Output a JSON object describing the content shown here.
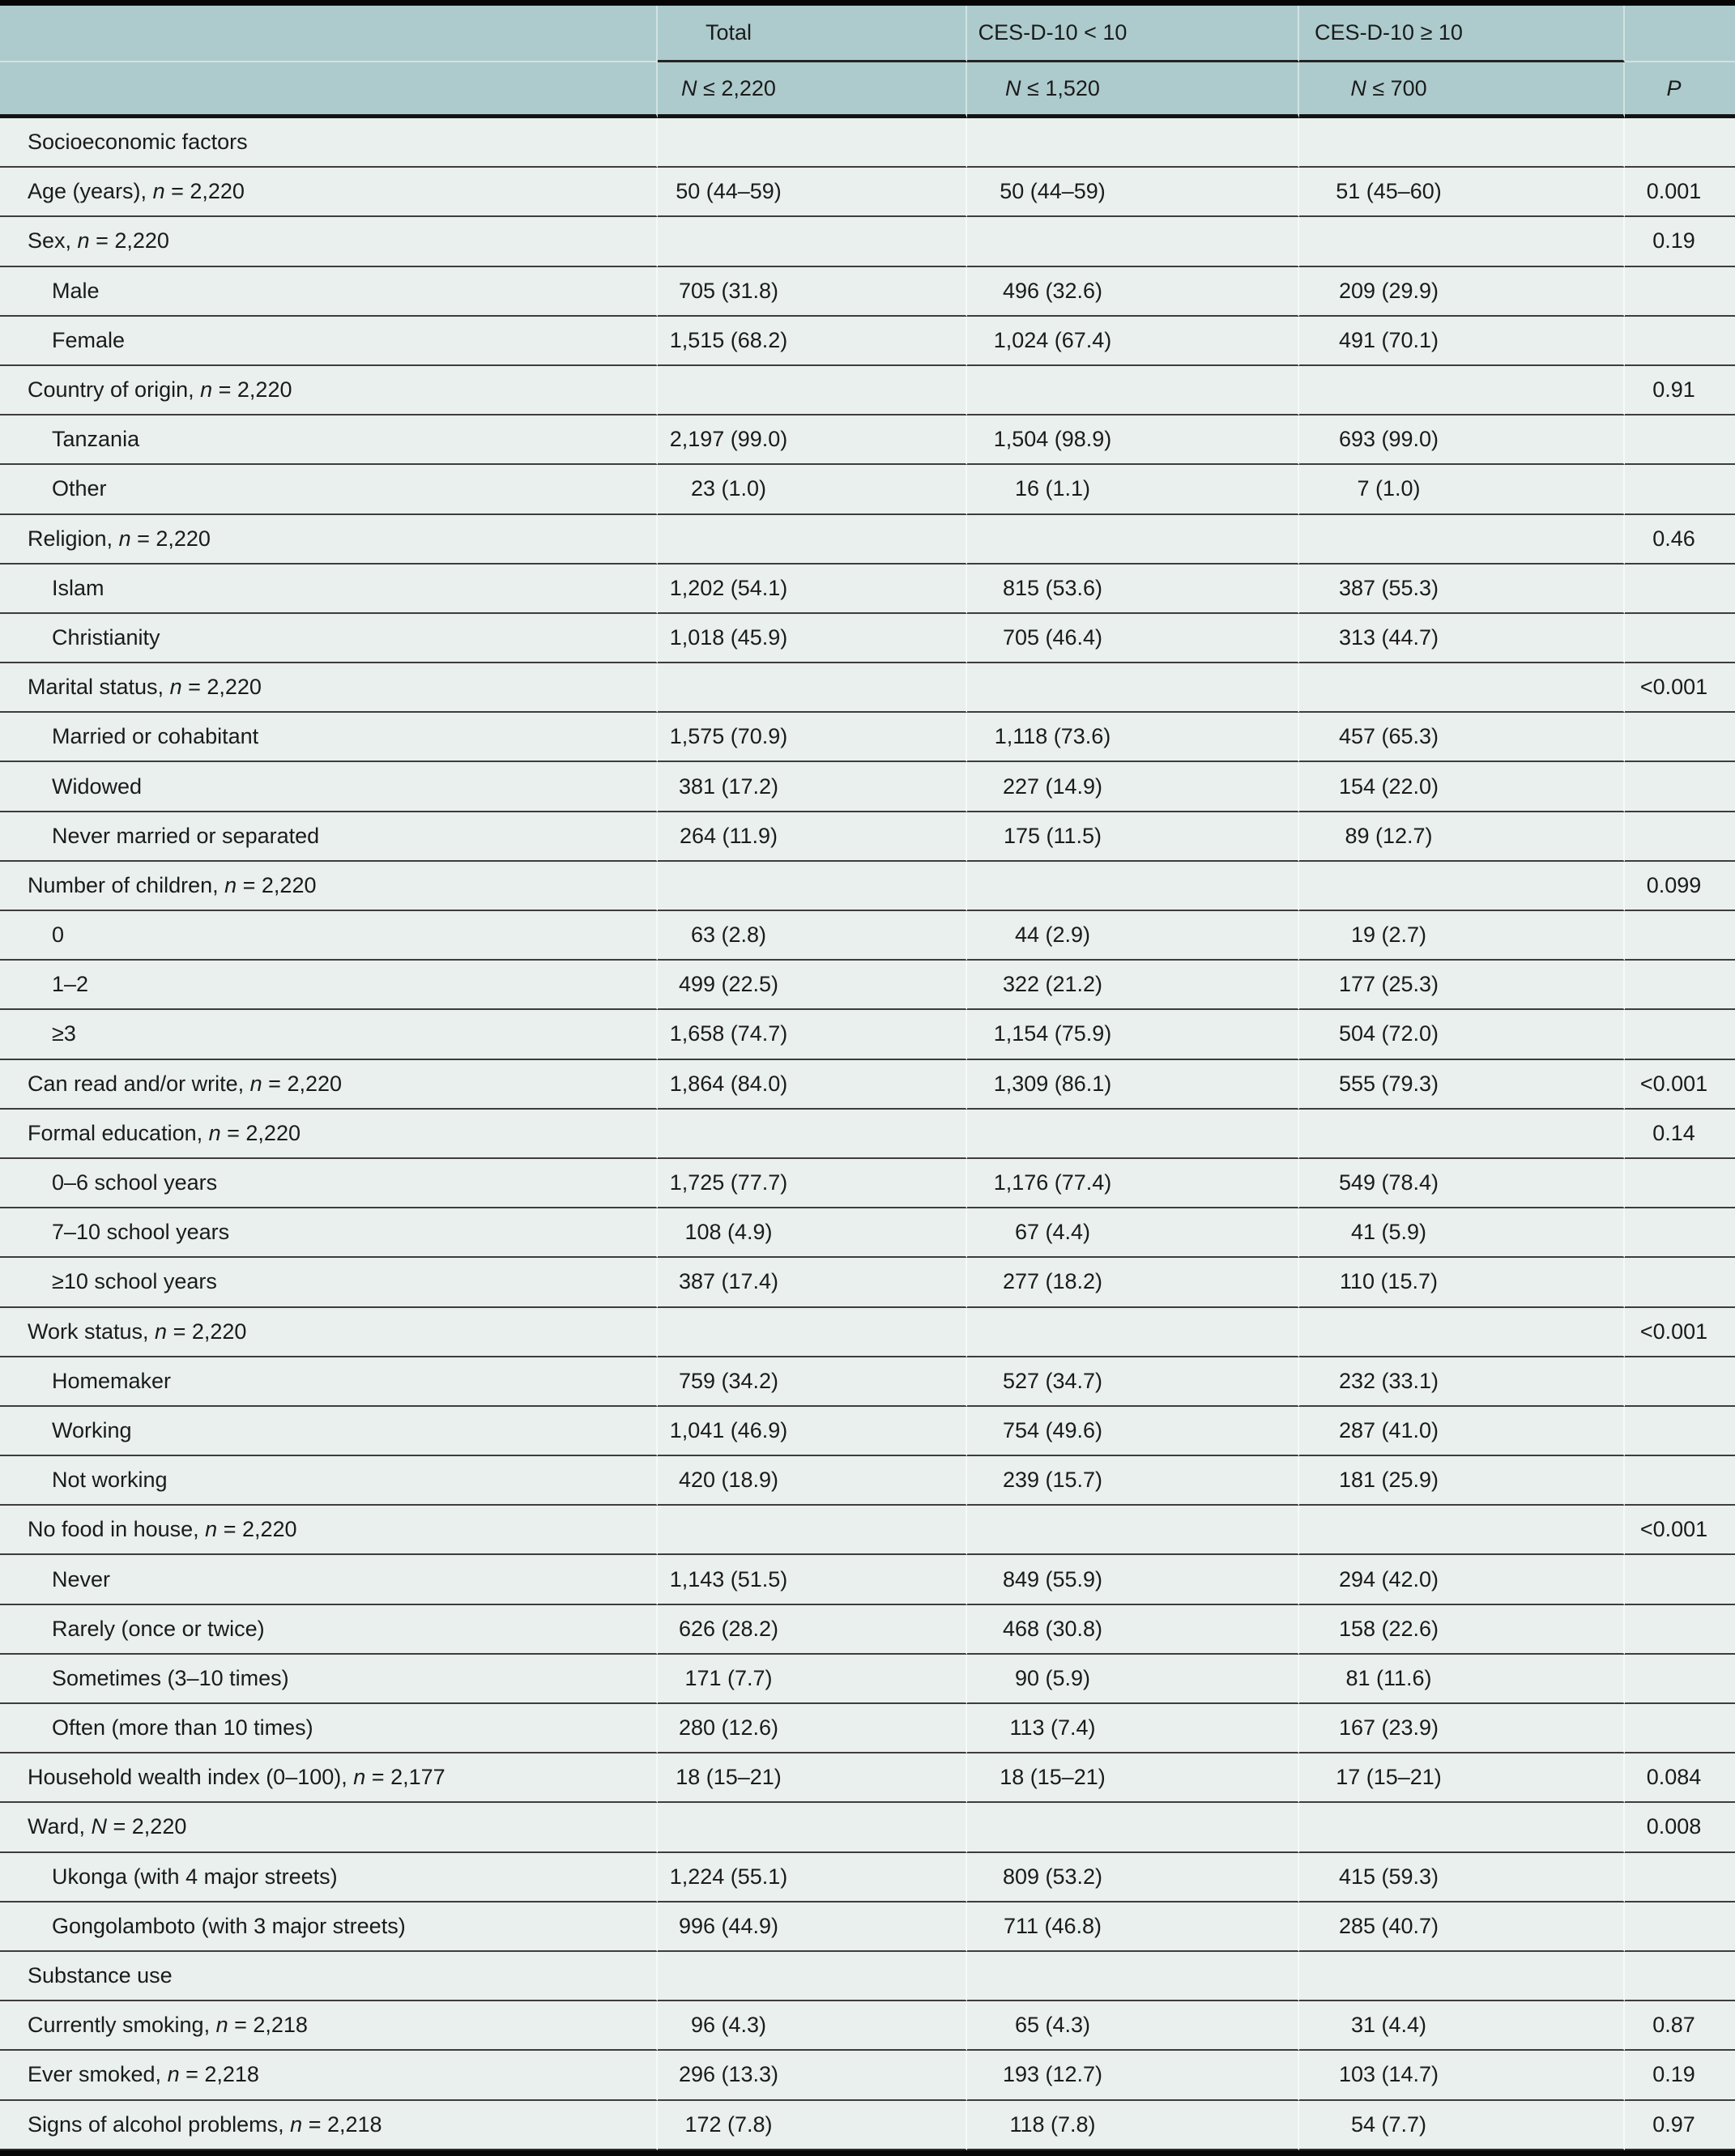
{
  "colors": {
    "header_bg": "#adcbcd",
    "body_bg": "#e9f0ee",
    "rule_dark": "#3d3d3d",
    "rule_heavy": "#141414",
    "text": "#1b1b1b"
  },
  "table": {
    "header": {
      "label_col": "",
      "col_groups": [
        "Total",
        "CES-D-10 < 10",
        "CES-D-10 ≥ 10"
      ],
      "subheaders": [
        "N ≤ 2,220",
        "N ≤ 1,520",
        "N ≤ 700"
      ],
      "p_label": "P"
    },
    "rows": [
      {
        "kind": "section",
        "label": "Socioeconomic factors",
        "total": "",
        "lt10": "",
        "ge10": "",
        "p": ""
      },
      {
        "kind": "item",
        "label": "Age (years), n = 2,220",
        "total": "50 (44–59)",
        "lt10": "50 (44–59)",
        "ge10": "51 (45–60)",
        "p": "0.001"
      },
      {
        "kind": "item",
        "label": "Sex, n = 2,220",
        "total": "",
        "lt10": "",
        "ge10": "",
        "p": "0.19"
      },
      {
        "kind": "sub",
        "label": "Male",
        "total": "705 (31.8)",
        "lt10": "496 (32.6)",
        "ge10": "209 (29.9)",
        "p": ""
      },
      {
        "kind": "sub",
        "label": "Female",
        "total": "1,515 (68.2)",
        "lt10": "1,024 (67.4)",
        "ge10": "491 (70.1)",
        "p": ""
      },
      {
        "kind": "item",
        "label": "Country of origin, n = 2,220",
        "total": "",
        "lt10": "",
        "ge10": "",
        "p": "0.91"
      },
      {
        "kind": "sub",
        "label": "Tanzania",
        "total": "2,197 (99.0)",
        "lt10": "1,504 (98.9)",
        "ge10": "693 (99.0)",
        "p": ""
      },
      {
        "kind": "sub",
        "label": "Other",
        "total": "23 (1.0)",
        "lt10": "16 (1.1)",
        "ge10": "7 (1.0)",
        "p": ""
      },
      {
        "kind": "item",
        "label": "Religion, n = 2,220",
        "total": "",
        "lt10": "",
        "ge10": "",
        "p": "0.46"
      },
      {
        "kind": "sub",
        "label": "Islam",
        "total": "1,202 (54.1)",
        "lt10": "815 (53.6)",
        "ge10": "387 (55.3)",
        "p": ""
      },
      {
        "kind": "sub",
        "label": "Christianity",
        "total": "1,018 (45.9)",
        "lt10": "705 (46.4)",
        "ge10": "313 (44.7)",
        "p": ""
      },
      {
        "kind": "item",
        "label": "Marital status, n = 2,220",
        "total": "",
        "lt10": "",
        "ge10": "",
        "p": "<0.001"
      },
      {
        "kind": "sub",
        "label": "Married or cohabitant",
        "total": "1,575 (70.9)",
        "lt10": "1,118 (73.6)",
        "ge10": "457 (65.3)",
        "p": ""
      },
      {
        "kind": "sub",
        "label": "Widowed",
        "total": "381 (17.2)",
        "lt10": "227 (14.9)",
        "ge10": "154 (22.0)",
        "p": ""
      },
      {
        "kind": "sub",
        "label": "Never married or separated",
        "total": "264 (11.9)",
        "lt10": "175 (11.5)",
        "ge10": "89 (12.7)",
        "p": ""
      },
      {
        "kind": "item",
        "label": "Number of children, n = 2,220",
        "total": "",
        "lt10": "",
        "ge10": "",
        "p": "0.099"
      },
      {
        "kind": "sub",
        "label": "0",
        "total": "63 (2.8)",
        "lt10": "44 (2.9)",
        "ge10": "19 (2.7)",
        "p": ""
      },
      {
        "kind": "sub",
        "label": "1–2",
        "total": "499 (22.5)",
        "lt10": "322 (21.2)",
        "ge10": "177 (25.3)",
        "p": ""
      },
      {
        "kind": "sub",
        "label": "≥3",
        "total": "1,658 (74.7)",
        "lt10": "1,154 (75.9)",
        "ge10": "504 (72.0)",
        "p": ""
      },
      {
        "kind": "item",
        "label": "Can read and/or write, n = 2,220",
        "total": "1,864 (84.0)",
        "lt10": "1,309 (86.1)",
        "ge10": "555 (79.3)",
        "p": "<0.001"
      },
      {
        "kind": "item",
        "label": "Formal education, n = 2,220",
        "total": "",
        "lt10": "",
        "ge10": "",
        "p": "0.14"
      },
      {
        "kind": "sub",
        "label": "0–6 school years",
        "total": "1,725 (77.7)",
        "lt10": "1,176 (77.4)",
        "ge10": "549 (78.4)",
        "p": ""
      },
      {
        "kind": "sub",
        "label": "7–10 school years",
        "total": "108 (4.9)",
        "lt10": "67 (4.4)",
        "ge10": "41 (5.9)",
        "p": ""
      },
      {
        "kind": "sub",
        "label": "≥10 school years",
        "total": "387 (17.4)",
        "lt10": "277 (18.2)",
        "ge10": "110 (15.7)",
        "p": ""
      },
      {
        "kind": "item",
        "label": "Work status, n = 2,220",
        "total": "",
        "lt10": "",
        "ge10": "",
        "p": "<0.001"
      },
      {
        "kind": "sub",
        "label": "Homemaker",
        "total": "759 (34.2)",
        "lt10": "527 (34.7)",
        "ge10": "232 (33.1)",
        "p": ""
      },
      {
        "kind": "sub",
        "label": "Working",
        "total": "1,041 (46.9)",
        "lt10": "754 (49.6)",
        "ge10": "287 (41.0)",
        "p": ""
      },
      {
        "kind": "sub",
        "label": "Not working",
        "total": "420 (18.9)",
        "lt10": "239 (15.7)",
        "ge10": "181 (25.9)",
        "p": ""
      },
      {
        "kind": "item",
        "label": "No food in house, n = 2,220",
        "total": "",
        "lt10": "",
        "ge10": "",
        "p": "<0.001"
      },
      {
        "kind": "sub",
        "label": "Never",
        "total": "1,143 (51.5)",
        "lt10": "849 (55.9)",
        "ge10": "294 (42.0)",
        "p": ""
      },
      {
        "kind": "sub",
        "label": "Rarely (once or twice)",
        "total": "626 (28.2)",
        "lt10": "468 (30.8)",
        "ge10": "158 (22.6)",
        "p": ""
      },
      {
        "kind": "sub",
        "label": "Sometimes (3–10 times)",
        "total": "171 (7.7)",
        "lt10": "90 (5.9)",
        "ge10": "81 (11.6)",
        "p": ""
      },
      {
        "kind": "sub",
        "label": "Often (more than 10 times)",
        "total": "280 (12.6)",
        "lt10": "113 (7.4)",
        "ge10": "167 (23.9)",
        "p": ""
      },
      {
        "kind": "item",
        "label": "Household wealth index (0–100), n = 2,177",
        "total": "18 (15–21)",
        "lt10": "18 (15–21)",
        "ge10": "17 (15–21)",
        "p": "0.084"
      },
      {
        "kind": "item",
        "label": "Ward, N = 2,220",
        "total": "",
        "lt10": "",
        "ge10": "",
        "p": "0.008"
      },
      {
        "kind": "sub",
        "label": "Ukonga (with 4 major streets)",
        "total": "1,224 (55.1)",
        "lt10": "809 (53.2)",
        "ge10": "415 (59.3)",
        "p": ""
      },
      {
        "kind": "sub",
        "label": "Gongolamboto (with 3 major streets)",
        "total": "996 (44.9)",
        "lt10": "711 (46.8)",
        "ge10": "285 (40.7)",
        "p": ""
      },
      {
        "kind": "section",
        "label": "Substance use",
        "total": "",
        "lt10": "",
        "ge10": "",
        "p": ""
      },
      {
        "kind": "item",
        "label": "Currently smoking, n = 2,218",
        "total": "96 (4.3)",
        "lt10": "65 (4.3)",
        "ge10": "31 (4.4)",
        "p": "0.87"
      },
      {
        "kind": "item",
        "label": "Ever smoked, n = 2,218",
        "total": "296 (13.3)",
        "lt10": "193 (12.7)",
        "ge10": "103 (14.7)",
        "p": "0.19"
      },
      {
        "kind": "item",
        "label": "Signs of alcohol problems, n = 2,218",
        "total": "172 (7.8)",
        "lt10": "118 (7.8)",
        "ge10": "54 (7.7)",
        "p": "0.97"
      }
    ]
  }
}
